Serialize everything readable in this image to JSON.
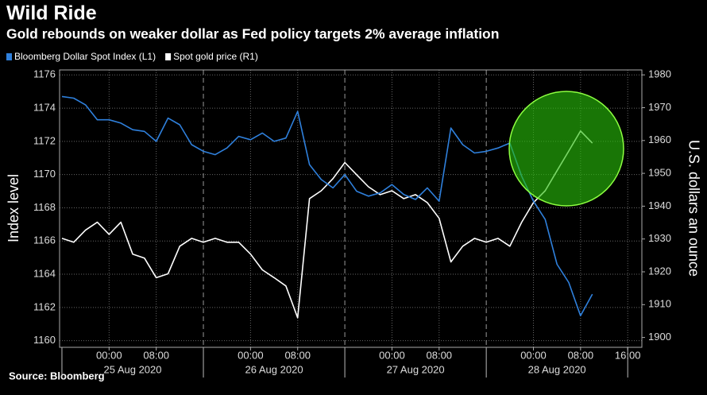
{
  "chart_data": {
    "type": "line",
    "title": "Wild Ride",
    "subtitle": "Gold rebounds on weaker dollar as Fed policy targets 2% average inflation",
    "ylabel": "Index level",
    "y2label": "U.S. dollars an ounce",
    "source": "Source: Bloomberg",
    "x": [
      -8,
      -6,
      -4,
      -2,
      0,
      2,
      4,
      6,
      8,
      10,
      12,
      14,
      16,
      18,
      20,
      22,
      24,
      26,
      28,
      30,
      32,
      34,
      36,
      38,
      40,
      42,
      44,
      46,
      48,
      50,
      52,
      54,
      56,
      58,
      60,
      62,
      64,
      66,
      68,
      70,
      72,
      74,
      76,
      78,
      80,
      82
    ],
    "series": [
      {
        "name": "Spot gold price (R1)",
        "color": "#ffffff",
        "axis": "y2",
        "values": [
          1930.2,
          1929.0,
          1932.7,
          1935.1,
          1931.4,
          1935.1,
          1925.4,
          1924.2,
          1918.2,
          1919.4,
          1927.8,
          1930.2,
          1929.0,
          1930.2,
          1929.0,
          1929.0,
          1925.4,
          1920.6,
          1918.2,
          1915.7,
          1906.0,
          1942.3,
          1944.7,
          1948.4,
          1953.3,
          1949.6,
          1945.9,
          1943.5,
          1944.7,
          1942.3,
          1943.5,
          1941.1,
          1936.3,
          1923.0,
          1927.8,
          1930.2,
          1929.0,
          1930.2,
          1927.8,
          1935.1,
          1941.1,
          1944.7,
          1950.8,
          1956.8,
          1962.9,
          1959.2
        ]
      },
      {
        "name": "Bloomberg Dollar Spot Index (L1)",
        "color": "#2f80dc",
        "axis": "y",
        "values": [
          1174.7,
          1174.6,
          1174.2,
          1173.3,
          1173.3,
          1173.1,
          1172.7,
          1172.6,
          1172.0,
          1173.4,
          1173.0,
          1171.8,
          1171.4,
          1171.2,
          1171.6,
          1172.3,
          1172.1,
          1172.5,
          1172.0,
          1172.2,
          1173.8,
          1170.6,
          1169.7,
          1169.2,
          1170.0,
          1169.0,
          1168.7,
          1168.9,
          1169.4,
          1168.8,
          1168.5,
          1169.2,
          1168.4,
          1172.8,
          1171.8,
          1171.3,
          1171.4,
          1171.6,
          1171.9,
          1169.9,
          1168.4,
          1167.3,
          1164.6,
          1163.5,
          1161.5,
          1162.8
        ]
      }
    ],
    "xlim": [
      -8.4,
      90.4
    ],
    "xticks": [
      {
        "value": 0,
        "label": "00:00"
      },
      {
        "value": 8,
        "label": "08:00"
      },
      {
        "value": 24,
        "label": "00:00"
      },
      {
        "value": 32,
        "label": "08:00"
      },
      {
        "value": 48,
        "label": "00:00"
      },
      {
        "value": 56,
        "label": "08:00"
      },
      {
        "value": 72,
        "label": "00:00"
      },
      {
        "value": 80,
        "label": "08:00"
      },
      {
        "value": 88,
        "label": "16:00"
      }
    ],
    "x_date_labels": [
      {
        "value": 4,
        "label": "25 Aug 2020"
      },
      {
        "value": 28,
        "label": "26 Aug 2020"
      },
      {
        "value": 52,
        "label": "27 Aug 2020"
      },
      {
        "value": 76,
        "label": "28 Aug 2020"
      }
    ],
    "ylim": [
      1159.6,
      1176.3
    ],
    "yticks": [
      1160,
      1162,
      1164,
      1166,
      1168,
      1170,
      1172,
      1174,
      1176
    ],
    "y2lim": [
      1897,
      1981.5
    ],
    "y2ticks": [
      1900,
      1910,
      1920,
      1930,
      1940,
      1950,
      1960,
      1970,
      1980
    ],
    "grid": true
  }
}
